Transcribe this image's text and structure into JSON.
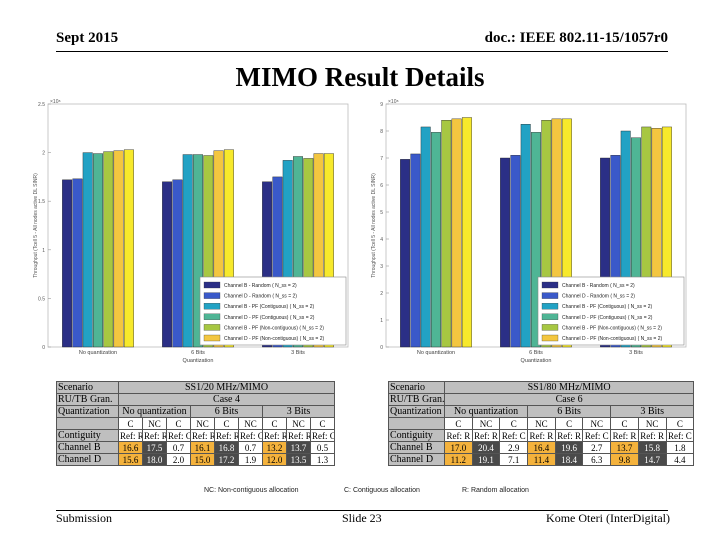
{
  "header": {
    "date": "Sept 2015",
    "doc": "doc.: IEEE 802.11-15/1057r0"
  },
  "title": "MIMO Result Details",
  "colors": {
    "channel_b_random": "#2b2f86",
    "channel_d_random": "#3a59c9",
    "channel_b_pf_contig": "#22a2c4",
    "channel_d_pf_contig": "#4fb595",
    "channel_b_pf_noncontig": "#a7c742",
    "channel_d_pf_noncontig": "#f3c640",
    "channel_b_extra": "#f7e92b",
    "table_highlight": "#f4b23c",
    "table_gray": "#bfbfbf",
    "table_dark": "#4a4a4a"
  },
  "chart_data": [
    {
      "type": "bar",
      "exponent_label": "×10⁸",
      "ylabel": "Throughput (Tcell 5 - All nodes active DL SINR)",
      "xlabel": "Quantization",
      "categories": [
        "No quantization",
        "6 Bits",
        "3 Bits"
      ],
      "ylim": [
        0,
        2.5
      ],
      "yticks": [
        "0",
        "0.5",
        "1",
        "1.5",
        "2",
        "2.5"
      ],
      "series": [
        {
          "name": "Channel B - Random ( N_ss = 2)",
          "values": [
            1.72,
            1.7,
            1.7
          ]
        },
        {
          "name": "Channel D - Random ( N_ss = 2)",
          "values": [
            1.73,
            1.72,
            1.75
          ]
        },
        {
          "name": "Channel B - PF (Contiguous) ( N_ss = 2)",
          "values": [
            2.0,
            1.98,
            1.92
          ]
        },
        {
          "name": "Channel D - PF (Contiguous) ( N_ss = 2)",
          "values": [
            1.99,
            1.98,
            1.96
          ]
        },
        {
          "name": "Channel B - PF (Non-contiguous) ( N_ss = 2)",
          "values": [
            2.01,
            1.97,
            1.94
          ]
        },
        {
          "name": "Channel D - PF (Non-contiguous) ( N_ss = 2)",
          "values": [
            2.02,
            2.02,
            1.99
          ]
        },
        {
          "name": "",
          "values": [
            2.03,
            2.03,
            1.99
          ]
        }
      ],
      "legend": [
        "Channel B - Random ( N_ss = 2)",
        "Channel D - Random ( N_ss = 2)",
        "Channel B - PF (Contiguous) ( N_ss = 2)",
        "Channel D - PF (Contiguous) ( N_ss = 2)",
        "Channel B - PF (Non-contiguous) ( N_ss = 2)",
        "Channel D - PF (Non-contiguous) ( N_ss = 2)"
      ]
    },
    {
      "type": "bar",
      "exponent_label": "×10⁸",
      "ylabel": "Throughput (Tcell 5 - All nodes active DL SINR)",
      "xlabel": "Quantization",
      "categories": [
        "No quantization",
        "6 Bits",
        "3 Bits"
      ],
      "ylim": [
        0,
        9
      ],
      "yticks": [
        "0",
        "1",
        "2",
        "3",
        "4",
        "5",
        "6",
        "7",
        "8",
        "9"
      ],
      "series": [
        {
          "name": "Channel B - Random ( N_ss = 2)",
          "values": [
            6.95,
            7.0,
            7.0
          ]
        },
        {
          "name": "Channel D - Random ( N_ss = 2)",
          "values": [
            7.15,
            7.1,
            7.1
          ]
        },
        {
          "name": "Channel B - PF (Contiguous) ( N_ss = 2)",
          "values": [
            8.15,
            8.25,
            8.0
          ]
        },
        {
          "name": "Channel D - PF (Contiguous) ( N_ss = 2)",
          "values": [
            7.95,
            7.95,
            7.75
          ]
        },
        {
          "name": "Channel B - PF (Non-contiguous) ( N_ss = 2)",
          "values": [
            8.4,
            8.4,
            8.15
          ]
        },
        {
          "name": "Channel D - PF (Non-contiguous) ( N_ss = 2)",
          "values": [
            8.45,
            8.45,
            8.1
          ]
        },
        {
          "name": "",
          "values": [
            8.5,
            8.45,
            8.15
          ]
        }
      ],
      "legend": [
        "Channel B - Random ( N_ss = 2)",
        "Channel D - Random ( N_ss = 2)",
        "Channel B - PF (Contiguous) ( N_ss = 2)",
        "Channel D - PF (Contiguous) ( N_ss = 2)",
        "Channel B - PF (Non-contiguous) ( N_ss = 2)",
        "Channel D - PF (Non-contiguous) ( N_ss = 2)"
      ]
    }
  ],
  "tables": [
    {
      "scenario_label": "Scenario",
      "scenario_value": "SS1/20 MHz/MIMO",
      "gran_label": "RU/TB Gran.",
      "gran_value": "Case 4",
      "quant_label": "Quantization",
      "groups": [
        "No quantization",
        "6 Bits",
        "3 Bits"
      ],
      "cnc": [
        "C",
        "NC",
        "C",
        "NC",
        "C",
        "NC",
        "C",
        "NC",
        "C"
      ],
      "contiguity_label": "Contiguity",
      "contiguity": [
        "Ref: R",
        "Ref: R",
        "Ref: C",
        "Ref: R",
        "Ref: R",
        "Ref: C",
        "Ref: R",
        "Ref: R",
        "Ref: C"
      ],
      "rows": [
        {
          "label": "Channel B",
          "values": [
            "16.6",
            "17.5",
            "0.7",
            "16.1",
            "16.8",
            "0.7",
            "13.2",
            "13.7",
            "0.5"
          ]
        },
        {
          "label": "Channel D",
          "values": [
            "15.6",
            "18.0",
            "2.0",
            "15.0",
            "17.2",
            "1.9",
            "12.0",
            "13.5",
            "1.3"
          ]
        }
      ]
    },
    {
      "scenario_label": "Scenario",
      "scenario_value": "SS1/80 MHz/MIMO",
      "gran_label": "RU/TB Gran.",
      "gran_value": "Case 6",
      "quant_label": "Quantization",
      "groups": [
        "No quantization",
        "6 Bits",
        "3 Bits"
      ],
      "cnc": [
        "C",
        "NC",
        "C",
        "NC",
        "C",
        "NC",
        "C",
        "NC",
        "C"
      ],
      "contiguity_label": "Contiguity",
      "contiguity": [
        "Ref: R",
        "Ref: R",
        "Ref: C",
        "Ref: R",
        "Ref: R",
        "Ref: C",
        "Ref: R",
        "Ref: R",
        "Ref: C"
      ],
      "rows": [
        {
          "label": "Channel B",
          "values": [
            "17.0",
            "20.4",
            "2.9",
            "16.4",
            "19.6",
            "2.7",
            "13.7",
            "15.8",
            "1.8"
          ]
        },
        {
          "label": "Channel D",
          "values": [
            "11.2",
            "19.1",
            "7.1",
            "11.4",
            "18.4",
            "6.3",
            "9.8",
            "14.7",
            "4.4"
          ]
        }
      ]
    }
  ],
  "notes": {
    "nc": "NC: Non-contiguous allocation",
    "c": "C: Contiguous allocation",
    "r": "R: Random allocation"
  },
  "footer": {
    "left": "Submission",
    "mid": "Slide 23",
    "right": "Kome Oteri (InterDigital)"
  }
}
